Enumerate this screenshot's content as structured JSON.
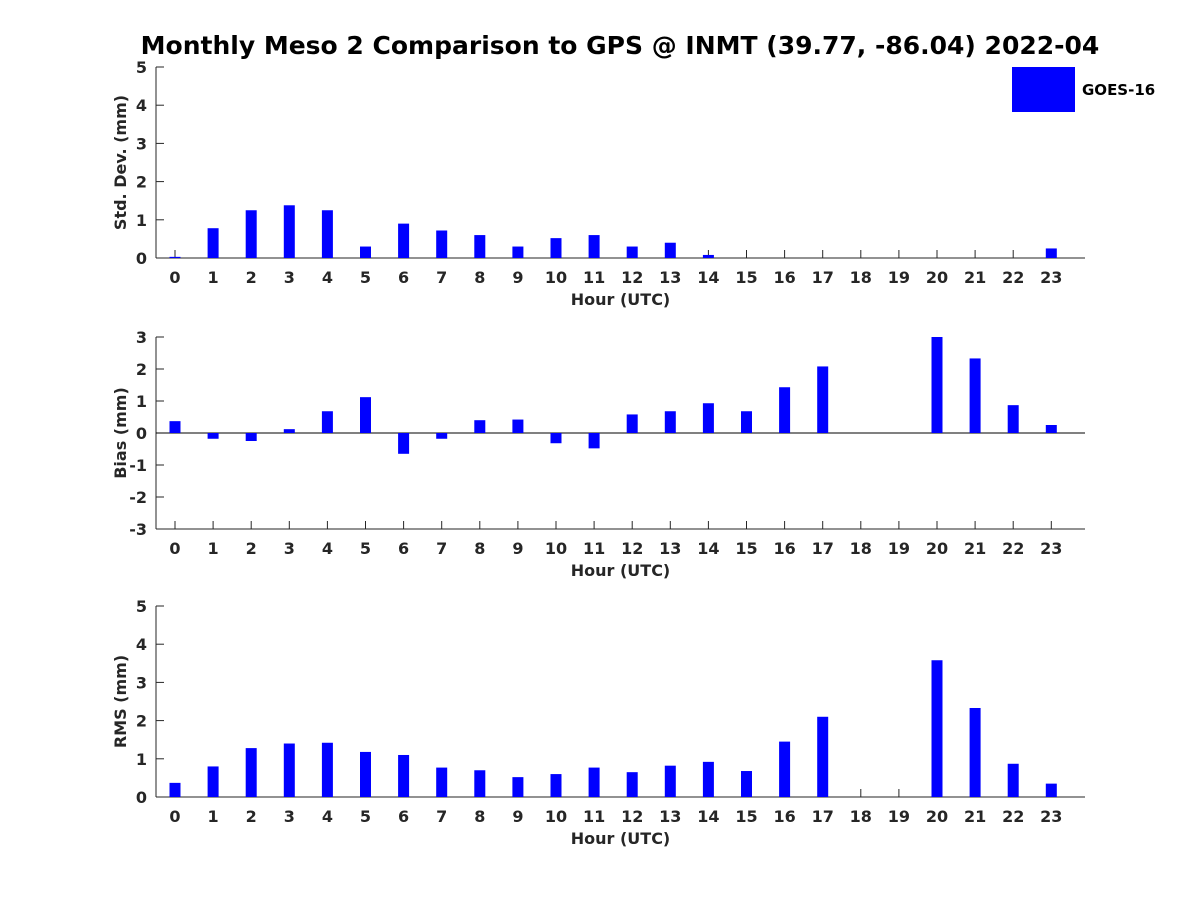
{
  "title": "Monthly Meso 2 Comparison to GPS @ INMT (39.77, -86.04) 2022-04",
  "legend": {
    "label": "GOES-16",
    "color": "#0000ff"
  },
  "chart_data": [
    {
      "type": "bar",
      "title": "Monthly Meso 2 Comparison to GPS @ INMT (39.77, -86.04) 2022-04",
      "xlabel": "Hour (UTC)",
      "ylabel": "Std. Dev. (mm)",
      "ylim": [
        0,
        5
      ],
      "yticks": [
        0,
        1,
        2,
        3,
        4,
        5
      ],
      "categories": [
        "0",
        "1",
        "2",
        "3",
        "4",
        "5",
        "6",
        "7",
        "8",
        "9",
        "10",
        "11",
        "12",
        "13",
        "14",
        "15",
        "16",
        "17",
        "18",
        "19",
        "20",
        "21",
        "22",
        "23"
      ],
      "series": [
        {
          "name": "GOES-16",
          "color": "#0000ff",
          "values": [
            0.03,
            0.78,
            1.25,
            1.38,
            1.25,
            0.3,
            0.9,
            0.72,
            0.6,
            0.3,
            0.52,
            0.6,
            0.3,
            0.4,
            0.08,
            0,
            0,
            0,
            0,
            0,
            0,
            0,
            0,
            0.25
          ]
        }
      ],
      "legend_position": "top-right",
      "grid": false
    },
    {
      "type": "bar",
      "xlabel": "Hour (UTC)",
      "ylabel": "Bias (mm)",
      "ylim": [
        -3,
        3
      ],
      "yticks": [
        -3,
        -2,
        -1,
        0,
        1,
        2,
        3
      ],
      "categories": [
        "0",
        "1",
        "2",
        "3",
        "4",
        "5",
        "6",
        "7",
        "8",
        "9",
        "10",
        "11",
        "12",
        "13",
        "14",
        "15",
        "16",
        "17",
        "18",
        "19",
        "20",
        "21",
        "22",
        "23"
      ],
      "series": [
        {
          "name": "GOES-16",
          "color": "#0000ff",
          "values": [
            0.37,
            -0.18,
            -0.25,
            0.12,
            0.68,
            1.12,
            -0.65,
            -0.18,
            0.4,
            0.42,
            -0.32,
            -0.48,
            0.58,
            0.68,
            0.93,
            0.68,
            1.43,
            2.08,
            0,
            0,
            3.0,
            2.33,
            0.87,
            0.25
          ]
        }
      ],
      "zero_line": true,
      "grid": false
    },
    {
      "type": "bar",
      "xlabel": "Hour (UTC)",
      "ylabel": "RMS (mm)",
      "ylim": [
        0,
        5
      ],
      "yticks": [
        0,
        1,
        2,
        3,
        4,
        5
      ],
      "categories": [
        "0",
        "1",
        "2",
        "3",
        "4",
        "5",
        "6",
        "7",
        "8",
        "9",
        "10",
        "11",
        "12",
        "13",
        "14",
        "15",
        "16",
        "17",
        "18",
        "19",
        "20",
        "21",
        "22",
        "23"
      ],
      "series": [
        {
          "name": "GOES-16",
          "color": "#0000ff",
          "values": [
            0.37,
            0.8,
            1.28,
            1.4,
            1.42,
            1.18,
            1.1,
            0.77,
            0.7,
            0.52,
            0.6,
            0.77,
            0.65,
            0.82,
            0.92,
            0.68,
            1.45,
            2.1,
            0,
            0,
            3.58,
            2.33,
            0.87,
            0.35
          ]
        }
      ],
      "grid": false
    }
  ]
}
